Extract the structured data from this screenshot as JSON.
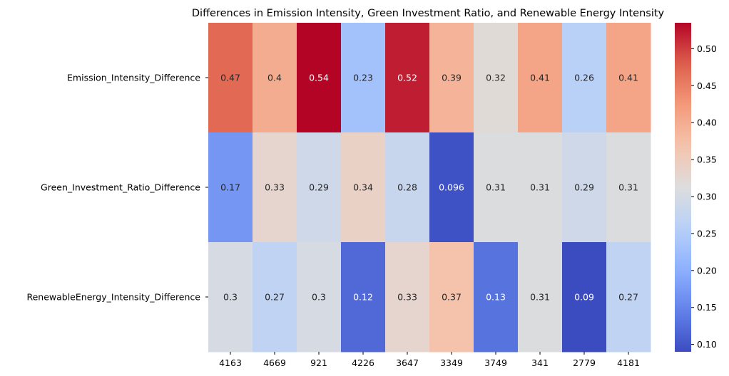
{
  "chart_data": {
    "type": "heatmap",
    "title": "Differences in Emission Intensity, Green Investment Ratio, and Renewable Energy Intensity",
    "xlabel": "",
    "ylabel": "",
    "colormap": "coolwarm",
    "x_categories": [
      "4163",
      "4669",
      "921",
      "4226",
      "3647",
      "3349",
      "3749",
      "341",
      "2779",
      "4181"
    ],
    "y_categories": [
      "Emission_Intensity_Difference",
      "Green_Investment_Ratio_Difference",
      "RenewableEnergy_Intensity_Difference"
    ],
    "values": [
      [
        0.47,
        0.4,
        0.54,
        0.23,
        0.52,
        0.39,
        0.32,
        0.41,
        0.26,
        0.41
      ],
      [
        0.17,
        0.33,
        0.29,
        0.34,
        0.28,
        0.096,
        0.31,
        0.31,
        0.29,
        0.31
      ],
      [
        0.3,
        0.27,
        0.3,
        0.12,
        0.33,
        0.37,
        0.13,
        0.31,
        0.09,
        0.27
      ]
    ],
    "colorbar": {
      "min": 0.09,
      "max": 0.535,
      "ticks": [
        "0.10",
        "0.15",
        "0.20",
        "0.25",
        "0.30",
        "0.35",
        "0.40",
        "0.45",
        "0.50"
      ]
    },
    "annotations": true,
    "grid": false
  }
}
